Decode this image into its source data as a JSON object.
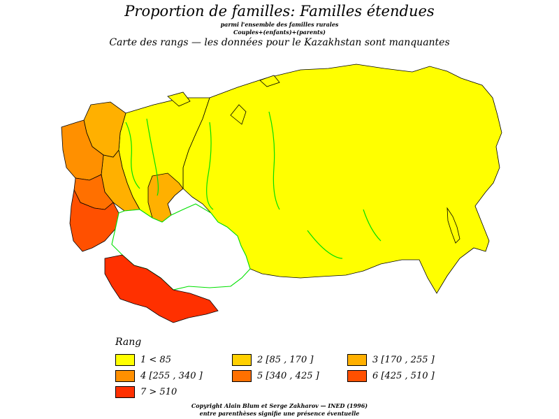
{
  "header": {
    "title": "Proportion de familles: Familles étendues",
    "subtitle1": "parmi l'ensemble des familles rurales",
    "subtitle2": "Couples+(enfants)+(parents)",
    "subtitle3": "Carte des rangs  —  les données pour le Kazakhstan sont manquantes"
  },
  "legend": {
    "title": "Rang",
    "items": [
      {
        "label": "1  <  85",
        "color": "#ffff00"
      },
      {
        "label": "2 [85 ,  170 ]",
        "color": "#ffd000"
      },
      {
        "label": "3 [170 ,  255 ]",
        "color": "#ffb000"
      },
      {
        "label": "4 [255 ,  340 ]",
        "color": "#ff9000"
      },
      {
        "label": "5 [340 ,  425 ]",
        "color": "#ff7000"
      },
      {
        "label": "6 [425 ,  510 ]",
        "color": "#ff5000"
      },
      {
        "label": "7  >  510",
        "color": "#ff3000"
      }
    ]
  },
  "map": {
    "missing_color": "#ffffff",
    "border_color": "#000000",
    "river_color": "#00e000"
  },
  "footer": {
    "copyright": "Copyright Alain Blum et Serge Zakharov  —  INED (1996)",
    "note": "entre parenthèses signifie une présence éventuelle"
  }
}
